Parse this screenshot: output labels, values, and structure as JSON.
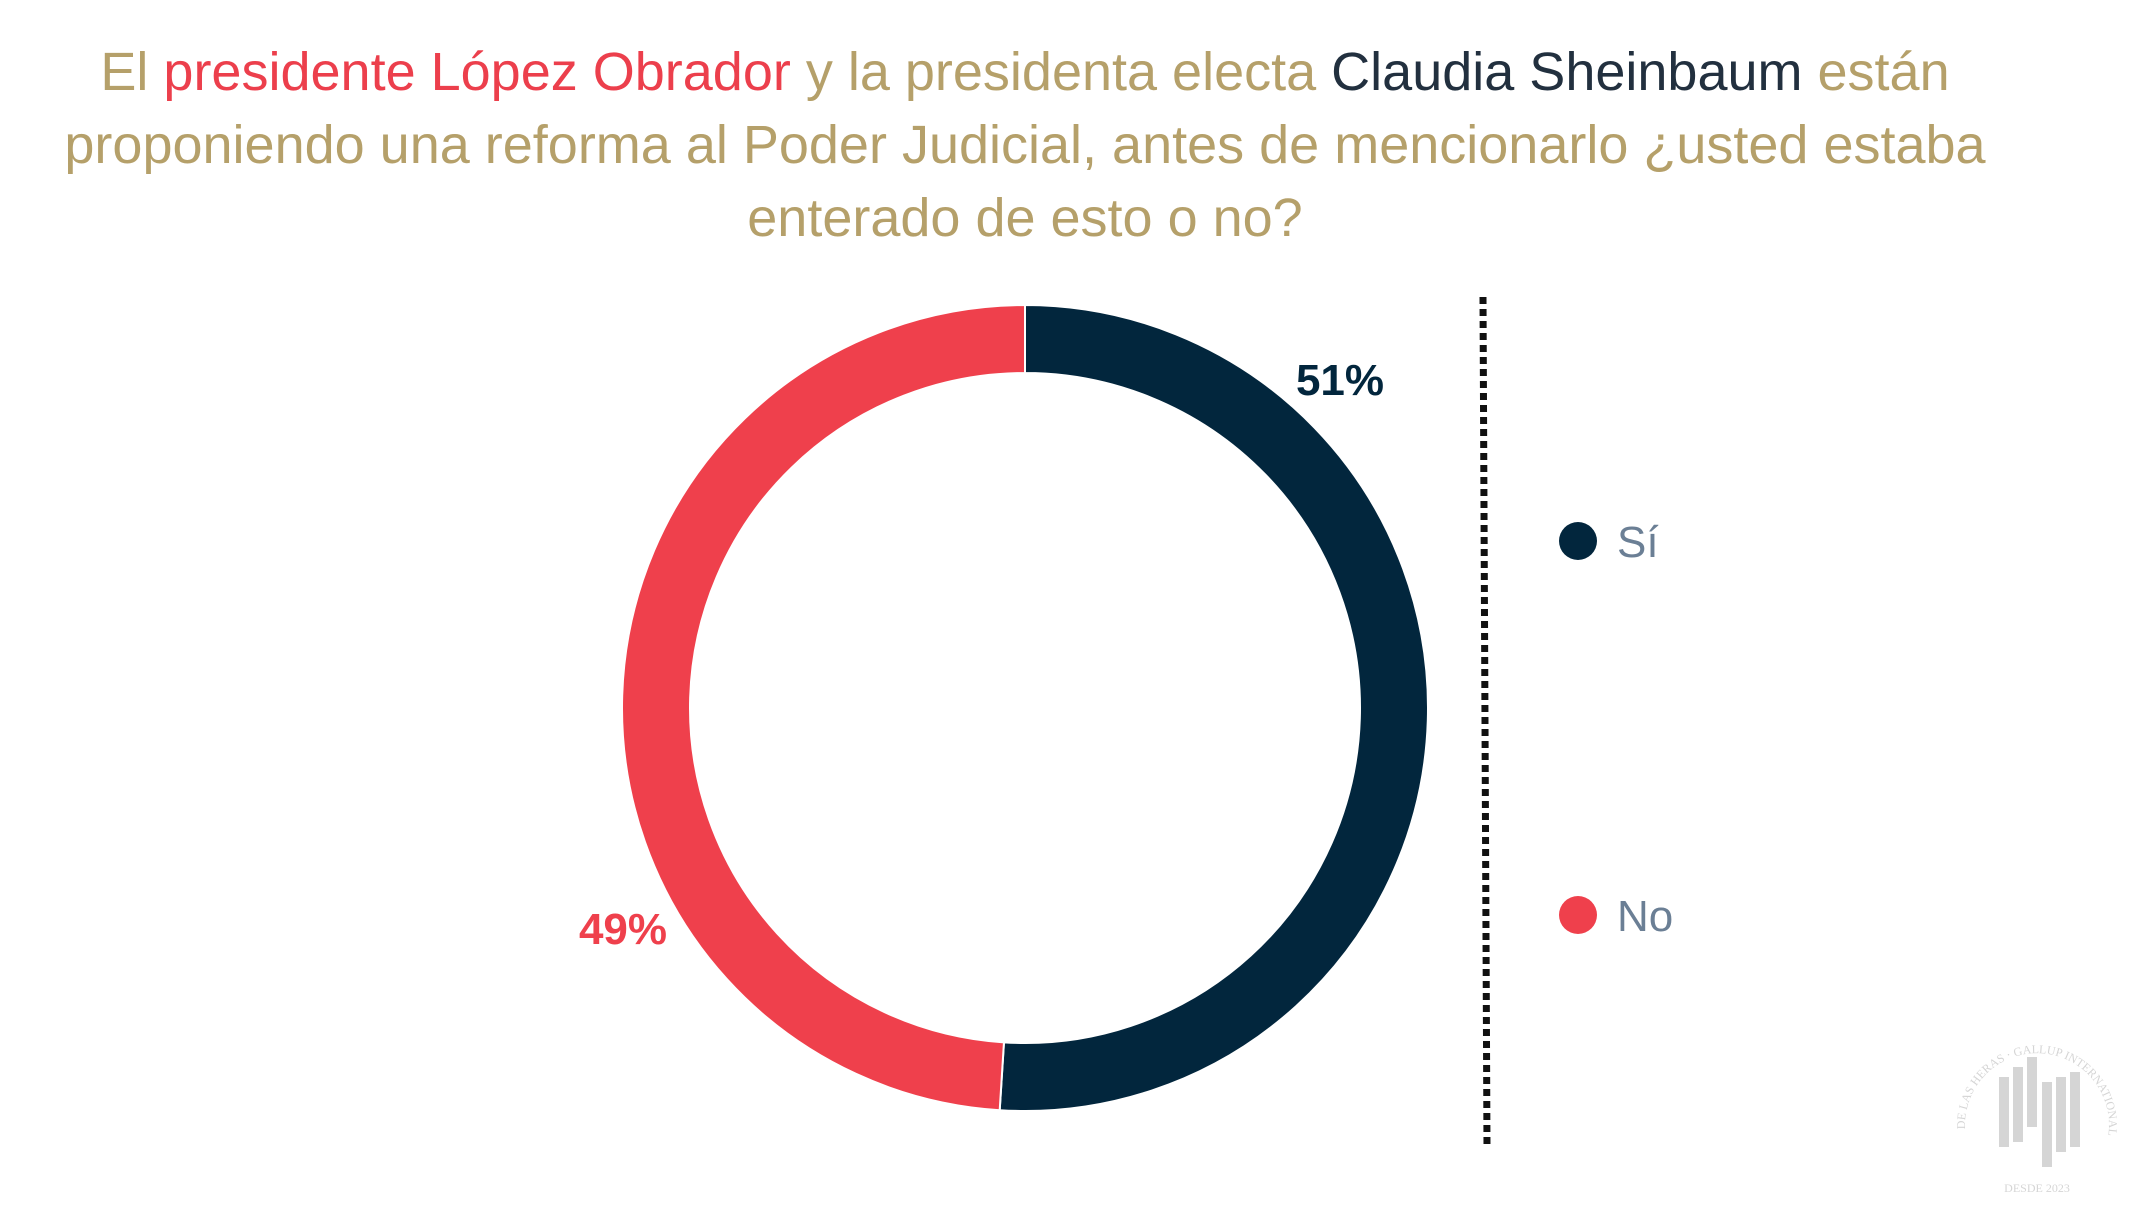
{
  "title": {
    "part1": "El ",
    "part2": "presidente López Obrador",
    "part3": " y la presidenta electa ",
    "part4": "Claudia Sheinbaum",
    "part5": " están proponiendo una reforma al Poder Judicial, antes de mencionarlo ¿usted estaba enterado de esto o no?"
  },
  "chart_data": {
    "type": "pie",
    "subtype": "donut",
    "categories": [
      "Sí",
      "No"
    ],
    "values": [
      51,
      49
    ],
    "data_labels": [
      "51%",
      "49%"
    ],
    "colors": [
      "#02263d",
      "#ef404c"
    ],
    "legend_placement": "right",
    "title": "El presidente López Obrador y la presidenta electa Claudia Sheinbaum están proponiendo una reforma al Poder Judicial, antes de mencionarlo ¿usted estaba enterado de esto o no?"
  },
  "logo": {
    "text": "DE LAS HERAS · GALLUP INTERNATIONAL MEMBER · DESDE 2023"
  }
}
